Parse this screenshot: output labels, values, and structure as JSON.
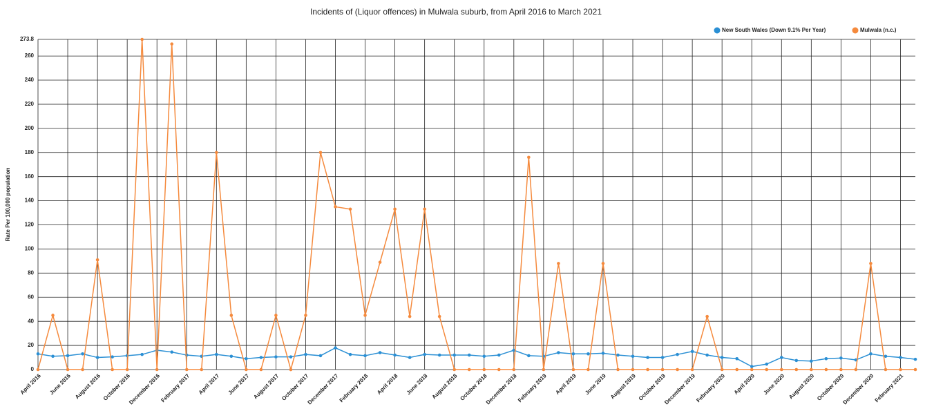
{
  "chart_data": {
    "type": "line",
    "title": "Incidents of  (Liquor offences)  in Mulwala suburb, from April 2016 to March 2021",
    "y_label": "Rate Per 100,000 population",
    "categories": [
      "April 2016",
      null,
      "June 2016",
      null,
      "August 2016",
      null,
      "October 2016",
      null,
      "December 2016",
      null,
      "February 2017",
      null,
      "April 2017",
      null,
      "June 2017",
      null,
      "August 2017",
      null,
      "October 2017",
      null,
      "December 2017",
      null,
      "February 2018",
      null,
      "April 2018",
      null,
      "June 2018",
      null,
      "August 2018",
      null,
      "October 2018",
      null,
      "December 2018",
      null,
      "February 2019",
      null,
      "April 2019",
      null,
      "June 2019",
      null,
      "August 2019",
      null,
      "October 2019",
      null,
      "December 2019",
      null,
      "February 2020",
      null,
      "April 2020",
      null,
      "June 2020",
      null,
      "August 2020",
      null,
      "October 2020",
      null,
      "December 2020",
      null,
      "February 2021",
      null
    ],
    "series": [
      {
        "name": "New South Wales (Down 9.1% Per Year)",
        "color": "#2a8fd4",
        "values": [
          13,
          11,
          11.5,
          13,
          10,
          10.5,
          11.5,
          12.5,
          16,
          14.5,
          12,
          11,
          12.5,
          11,
          9,
          10,
          10.5,
          10.5,
          12.5,
          11.5,
          18,
          12.5,
          11.5,
          14,
          12,
          10,
          12.5,
          12,
          12,
          12,
          11,
          12,
          16,
          11.5,
          11,
          14,
          13,
          13,
          13.5,
          12,
          11,
          10,
          10,
          12.5,
          15,
          12,
          10,
          9,
          2.5,
          4.5,
          10,
          7.5,
          7,
          9,
          9.5,
          8,
          13,
          11,
          10,
          8.5
        ]
      },
      {
        "name": "Mulwala (n.c.)",
        "color": "#f58a3d",
        "values": [
          0,
          45,
          0,
          0,
          91,
          0,
          0,
          273.8,
          0,
          270,
          0,
          0,
          180,
          45,
          0,
          0,
          45,
          0,
          45,
          180,
          135,
          133,
          45,
          89,
          133,
          44,
          133,
          44,
          0,
          0,
          0,
          0,
          0,
          176,
          0,
          88,
          0,
          0,
          88,
          0,
          0,
          0,
          0,
          0,
          0,
          44,
          0,
          0,
          0,
          0,
          0,
          0,
          0,
          0,
          0,
          0,
          88,
          0,
          0,
          0
        ]
      }
    ],
    "ylim": [
      0,
      273.8
    ],
    "yticks": [
      0,
      20,
      40,
      60,
      80,
      100,
      120,
      140,
      160,
      180,
      200,
      220,
      240,
      260,
      273.8
    ],
    "grid": true,
    "legend": "top-right"
  }
}
